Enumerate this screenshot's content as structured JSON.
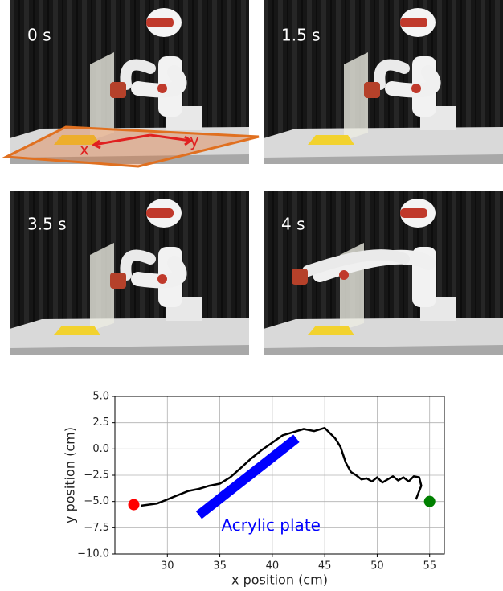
{
  "panels": [
    {
      "label": "0 s",
      "axis_labels": [
        "x",
        "y"
      ]
    },
    {
      "label": "1.5 s"
    },
    {
      "label": "3.5 s"
    },
    {
      "label": "4 s"
    }
  ],
  "chart_data": {
    "type": "line",
    "xlabel": "x position (cm)",
    "ylabel": "y position (cm)",
    "xlim": [
      25,
      56.4
    ],
    "ylim": [
      -10,
      5
    ],
    "xticks": [
      30,
      35,
      40,
      45,
      50,
      55
    ],
    "yticks": [
      {
        "value": 5,
        "label": "5.0"
      },
      {
        "value": 2.5,
        "label": "2.5"
      },
      {
        "value": 0,
        "label": "0.0"
      },
      {
        "value": -2.5,
        "label": "−2.5"
      },
      {
        "value": -5,
        "label": "−5.0"
      },
      {
        "value": -7.5,
        "label": "−7.5"
      },
      {
        "value": -10,
        "label": "−10.0"
      }
    ],
    "grid": true,
    "series": [
      {
        "color": "#000000",
        "x": [
          27.5,
          29,
          30,
          31,
          32,
          33,
          34,
          35,
          36,
          37,
          38,
          39,
          40,
          41,
          42,
          43,
          44,
          45,
          46,
          46.5,
          47,
          47.5,
          48,
          48.5,
          49,
          49.5,
          50,
          50.5,
          51,
          51.5,
          52,
          52.5,
          53,
          53.5,
          54,
          54.2,
          53.7
        ],
        "y": [
          -5.4,
          -5.2,
          -4.8,
          -4.4,
          -4.0,
          -3.8,
          -3.5,
          -3.3,
          -2.7,
          -1.8,
          -0.9,
          -0.1,
          0.6,
          1.3,
          1.6,
          1.9,
          1.7,
          2.0,
          1.0,
          0.2,
          -1.3,
          -2.2,
          -2.5,
          -2.9,
          -2.8,
          -3.1,
          -2.7,
          -3.2,
          -2.9,
          -2.6,
          -3.0,
          -2.7,
          -3.1,
          -2.6,
          -2.7,
          -3.5,
          -4.8
        ]
      },
      {
        "type": "scatter",
        "color": "#ff0000",
        "x": [
          26.8
        ],
        "y": [
          -5.3
        ]
      },
      {
        "type": "scatter",
        "color": "#008000",
        "x": [
          55
        ],
        "y": [
          -5.0
        ]
      }
    ],
    "plate": {
      "label": "Acrylic plate",
      "color": "#0000ff",
      "x": [
        33,
        42.3
      ],
      "y": [
        -6.3,
        1.0
      ]
    }
  }
}
